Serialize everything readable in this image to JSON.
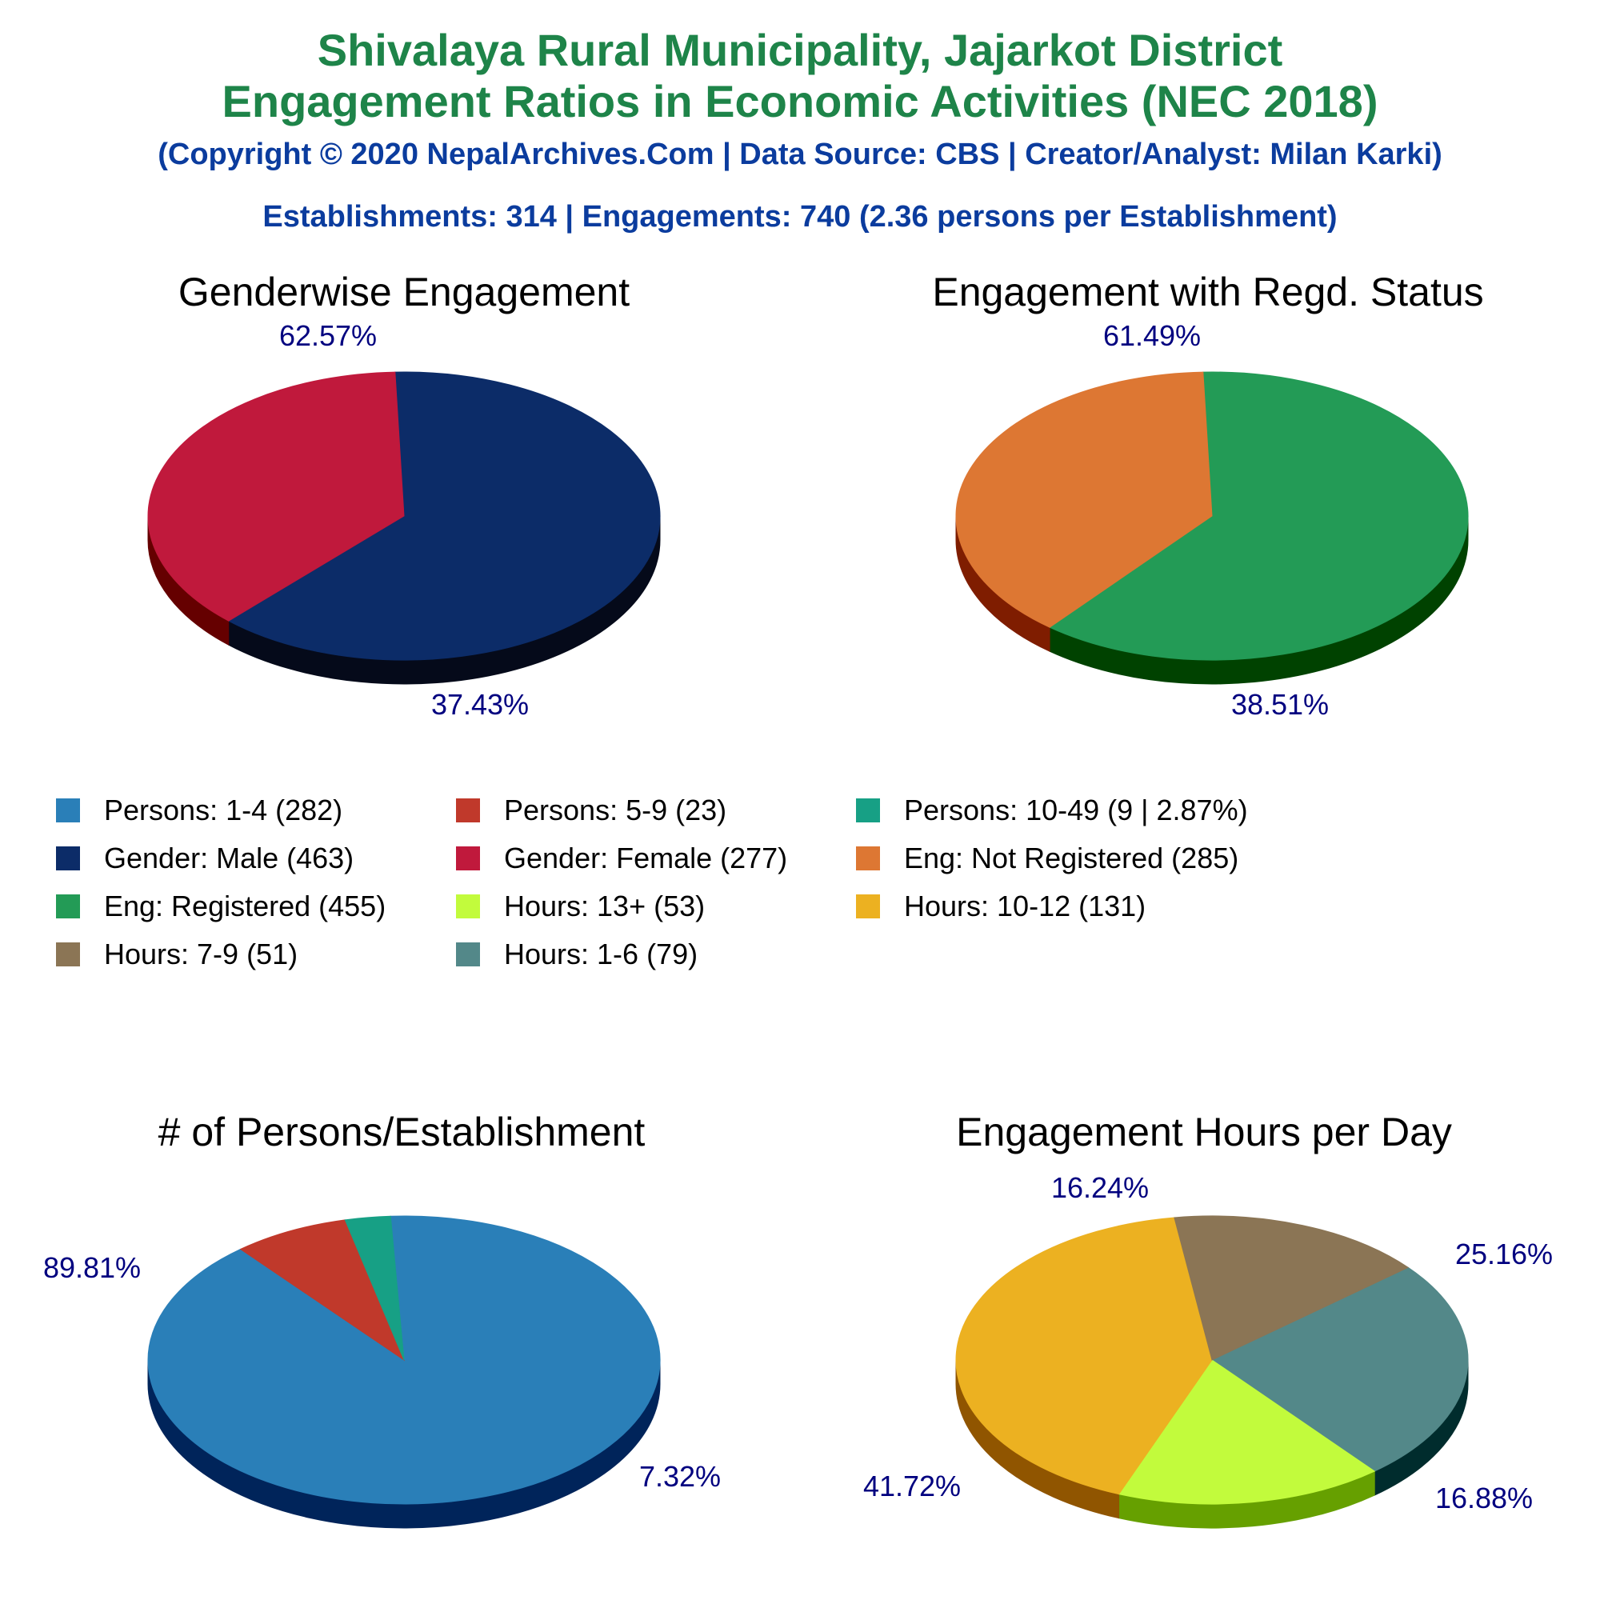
{
  "header": {
    "title_line1": "Shivalaya Rural Municipality, Jajarkot District",
    "title_line2": "Engagement Ratios in Economic Activities (NEC 2018)",
    "copyright": "(Copyright © 2020 NepalArchives.Com | Data Source: CBS | Creator/Analyst: Milan Karki)",
    "summary": "Establishments: 314 | Engagements: 740 (2.36 persons per Establishment)"
  },
  "legend": [
    {
      "label": "Persons: 1-4 (282)",
      "color": "#2a7fb8"
    },
    {
      "label": "Persons: 5-9 (23)",
      "color": "#c0392b"
    },
    {
      "label": "Persons: 10-49 (9 | 2.87%)",
      "color": "#17a085"
    },
    {
      "label": "Gender: Male (463)",
      "color": "#0c2c68"
    },
    {
      "label": "Gender: Female (277)",
      "color": "#c0193c"
    },
    {
      "label": "Eng: Not Registered (285)",
      "color": "#dd7733"
    },
    {
      "label": "Eng: Registered (455)",
      "color": "#239b56"
    },
    {
      "label": "Hours: 13+ (53)",
      "color": "#c2fb3c"
    },
    {
      "label": "Hours: 10-12 (131)",
      "color": "#ecb121"
    },
    {
      "label": "Hours: 7-9 (51)",
      "color": "#8b7555"
    },
    {
      "label": "Hours: 1-6 (79)",
      "color": "#538889"
    }
  ],
  "chart_data": [
    {
      "type": "pie",
      "title": "Genderwise Engagement",
      "slices": [
        {
          "category": "Gender: Male",
          "value": 463,
          "percent_label": "62.57%",
          "color": "#0c2c68",
          "side": "#050a1a"
        },
        {
          "category": "Gender: Female",
          "value": 277,
          "percent_label": "37.43%",
          "color": "#c0193c",
          "side": "#650000"
        }
      ]
    },
    {
      "type": "pie",
      "title": "Engagement with Regd. Status",
      "slices": [
        {
          "category": "Eng: Registered",
          "value": 455,
          "percent_label": "61.49%",
          "color": "#239b56",
          "side": "#004200"
        },
        {
          "category": "Eng: Not Registered",
          "value": 285,
          "percent_label": "38.51%",
          "color": "#dd7733",
          "side": "#7f1d00"
        }
      ]
    },
    {
      "type": "pie",
      "title": "# of Persons/Establishment",
      "slices": [
        {
          "category": "Persons: 1-4",
          "value": 282,
          "percent_label": "89.81%",
          "color": "#2a7fb8",
          "side": "#00245a"
        },
        {
          "category": "Persons: 5-9",
          "value": 23,
          "percent_label": "7.32%",
          "color": "#c0392b",
          "side": "#650000"
        },
        {
          "category": "Persons: 10-49",
          "value": 9,
          "percent_label": "",
          "color": "#17a085",
          "side": "#004229"
        }
      ]
    },
    {
      "type": "pie",
      "title": "Engagement Hours per Day",
      "slices": [
        {
          "category": "Hours: 1-6",
          "value": 79,
          "percent_label": "25.16%",
          "color": "#538889",
          "side": "#002c2d"
        },
        {
          "category": "Hours: 13+",
          "value": 53,
          "percent_label": "16.88%",
          "color": "#c2fb3c",
          "side": "#66a000"
        },
        {
          "category": "Hours: 10-12",
          "value": 131,
          "percent_label": "41.72%",
          "color": "#ecb121",
          "side": "#905500"
        },
        {
          "category": "Hours: 7-9",
          "value": 51,
          "percent_label": "16.24%",
          "color": "#8b7555",
          "side": "#2f1a00"
        }
      ]
    }
  ]
}
